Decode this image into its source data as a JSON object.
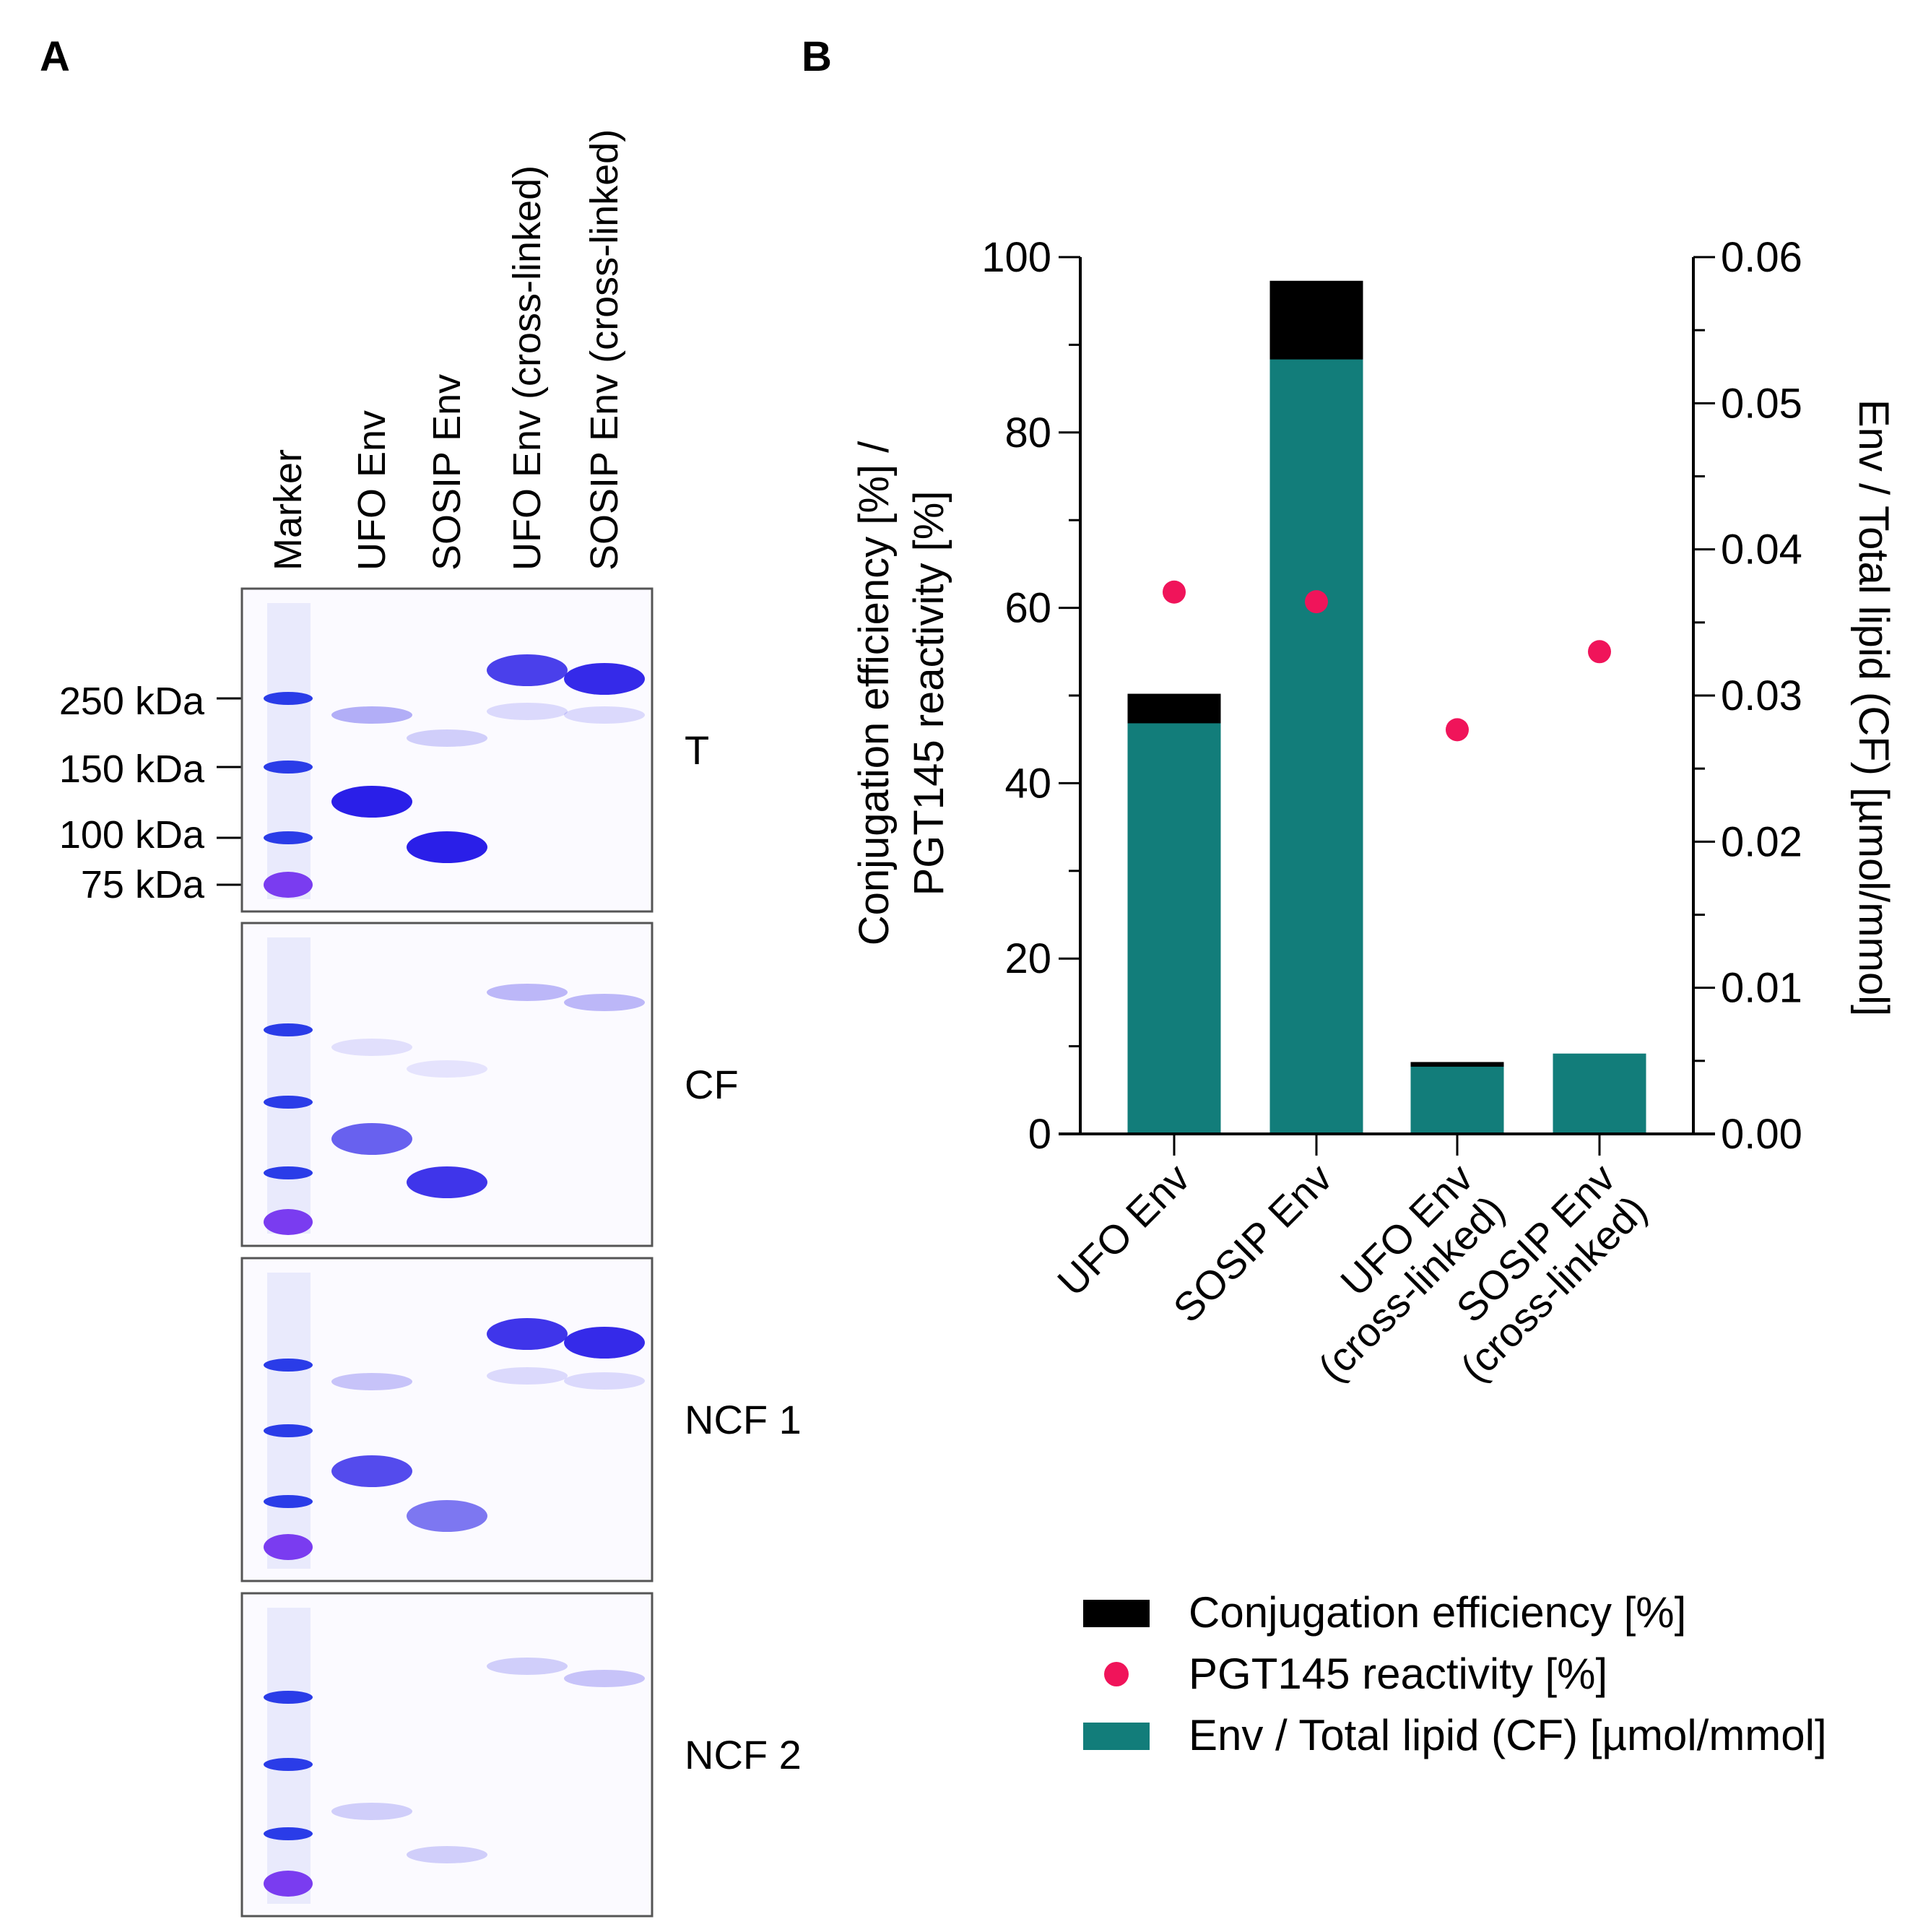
{
  "panel_a": {
    "label": "A",
    "lanes": [
      "Marker",
      "UFO Env",
      "SOSIP Env",
      "UFO Env (cross-linked)",
      "SOSIP Env (cross-linked)"
    ],
    "markers": [
      "250 kDa",
      "150 kDa",
      "100 kDa",
      "75 kDa"
    ],
    "gels": [
      "T",
      "CF",
      "NCF 1",
      "NCF 2"
    ]
  },
  "panel_b": {
    "label": "B"
  },
  "chart_data": {
    "type": "bar",
    "categories": [
      "UFO Env",
      "SOSIP Env",
      "UFO Env (cross-linked)",
      "SOSIP Env (cross-linked)"
    ],
    "category_lines": [
      [
        "UFO Env"
      ],
      [
        "SOSIP Env"
      ],
      [
        "UFO Env",
        "(cross-linked)"
      ],
      [
        "SOSIP Env",
        "(cross-linked)"
      ]
    ],
    "series": [
      {
        "name": "Conjugation efficiency [%]",
        "axis": "left",
        "kind": "bar",
        "color": "#000000",
        "values": [
          50.2,
          97.3,
          8.2,
          9.0
        ]
      },
      {
        "name": "PGT145 reactivity [%]",
        "axis": "left",
        "kind": "point",
        "color": "#f0145a",
        "values": [
          61.8,
          60.7,
          46.1,
          55.0
        ]
      },
      {
        "name": "Env / Total lipid (CF) [µmol/mmol]",
        "axis": "right",
        "kind": "bar",
        "color": "#127d7a",
        "values": [
          0.0281,
          0.053,
          0.0046,
          0.0055
        ]
      }
    ],
    "ylabel_lines": [
      "Conjugation efficiency [%] /",
      "PGT145 reactivity [%]"
    ],
    "y2label": "Env / Total lipid (CF) [µmol/mmol]",
    "ylim": [
      0,
      100
    ],
    "y2lim": [
      0,
      0.06
    ],
    "yticks": [
      "0",
      "20",
      "40",
      "60",
      "80",
      "100"
    ],
    "y2ticks": [
      "0.00",
      "0.01",
      "0.02",
      "0.03",
      "0.04",
      "0.05",
      "0.06"
    ],
    "legend_position": "bottom"
  }
}
